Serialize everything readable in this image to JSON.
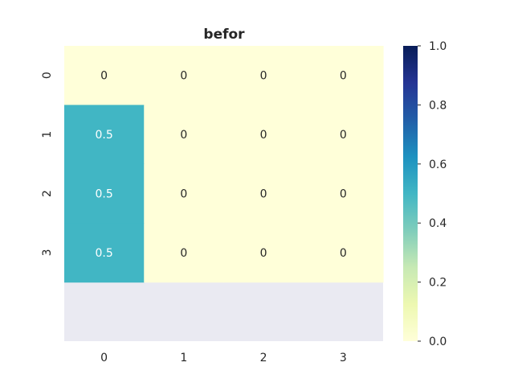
{
  "chart_data": {
    "type": "heatmap",
    "title": "befor",
    "x_ticks": [
      "0",
      "1",
      "2",
      "3"
    ],
    "y_ticks": [
      "0",
      "1",
      "2",
      "3"
    ],
    "values": [
      [
        0,
        0,
        0,
        0
      ],
      [
        0.5,
        0,
        0,
        0
      ],
      [
        0.5,
        0,
        0,
        0
      ],
      [
        0.5,
        0,
        0,
        0
      ]
    ],
    "cell_labels": [
      [
        "0",
        "0",
        "0",
        "0"
      ],
      [
        "0.5",
        "0",
        "0",
        "0"
      ],
      [
        "0.5",
        "0",
        "0",
        "0"
      ],
      [
        "0.5",
        "0",
        "0",
        "0"
      ]
    ],
    "colormap": "YlGnBu",
    "vmin": 0,
    "vmax": 1,
    "colorbar_ticks": [
      "0.0",
      "0.2",
      "0.4",
      "0.6",
      "0.8",
      "1.0"
    ],
    "grid": false,
    "colors": {
      "background": "#eaeaf2",
      "low": "#ffffd9",
      "mid": "#41b6c4",
      "high": "#081d58"
    }
  }
}
